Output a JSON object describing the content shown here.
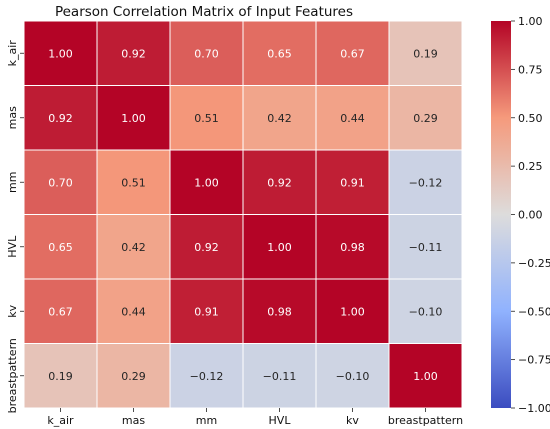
{
  "chart_data": {
    "type": "heatmap",
    "title": "Pearson Correlation Matrix of Input Features",
    "xlabel": "",
    "ylabel": "",
    "x_categories": [
      "k_air",
      "mas",
      "mm",
      "HVL",
      "kv",
      "breastpattern"
    ],
    "y_categories": [
      "k_air",
      "mas",
      "mm",
      "HVL",
      "kv",
      "breastpattern"
    ],
    "values": [
      [
        1.0,
        0.92,
        0.7,
        0.65,
        0.67,
        0.19
      ],
      [
        0.92,
        1.0,
        0.51,
        0.42,
        0.44,
        0.29
      ],
      [
        0.7,
        0.51,
        1.0,
        0.92,
        0.91,
        -0.12
      ],
      [
        0.65,
        0.42,
        0.92,
        1.0,
        0.98,
        -0.11
      ],
      [
        0.67,
        0.44,
        0.91,
        0.98,
        1.0,
        -0.1
      ],
      [
        0.19,
        0.29,
        -0.12,
        -0.11,
        -0.1,
        1.0
      ]
    ],
    "value_range": [
      -1.0,
      1.0
    ],
    "colormap": "coolwarm",
    "colorbar_ticks": [
      1.0,
      0.75,
      0.5,
      0.25,
      0.0,
      -0.25,
      -0.5,
      -0.75,
      -1.0
    ],
    "colorbar_tick_labels": [
      "1.00",
      "0.75",
      "0.50",
      "0.25",
      "0.00",
      "−0.25",
      "−0.50",
      "−0.75",
      "−1.00"
    ],
    "grid": true,
    "legend": "colorbar-right"
  }
}
